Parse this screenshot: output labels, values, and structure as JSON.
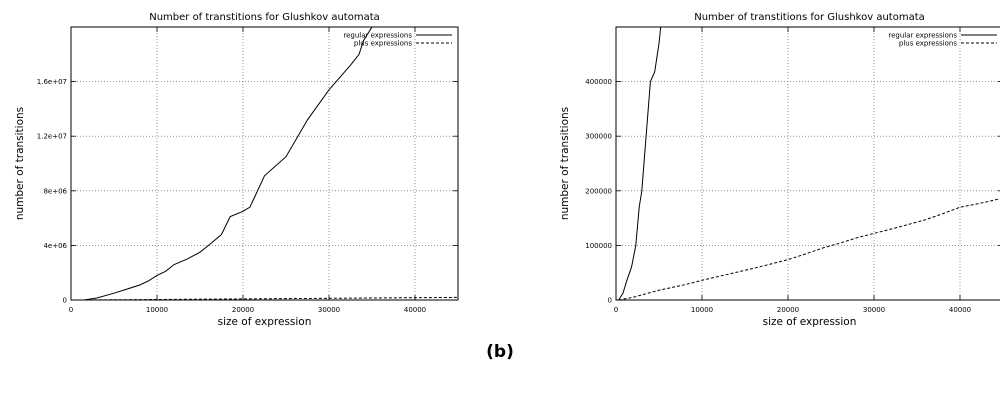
{
  "figure_label": "(b)",
  "chart_data": [
    {
      "type": "line",
      "title": "Number of transtitions for Glushkov automata",
      "xlabel": "size of expression",
      "ylabel": "number of transitions",
      "xlim": [
        0,
        45000
      ],
      "ylim": [
        0,
        20000000
      ],
      "xticks": [
        0,
        10000,
        20000,
        30000,
        40000
      ],
      "xtick_labels": [
        "0",
        "10000",
        "20000",
        "30000",
        "40000"
      ],
      "yticks": [
        0,
        4000000,
        8000000,
        12000000,
        16000000
      ],
      "ytick_labels": [
        "0",
        "4e+06",
        "8e+06",
        "1.2e+07",
        "1.6e+07"
      ],
      "grid": true,
      "legend_position": "top-right",
      "series": [
        {
          "name": "regular expressions",
          "style": "solid",
          "x": [
            1500,
            3000,
            5000,
            6500,
            8000,
            9000,
            10000,
            11000,
            12000,
            13500,
            15000,
            16000,
            17500,
            18500,
            20000,
            20800,
            22500,
            25000,
            27500,
            30000,
            32500,
            33500,
            34000,
            35000
          ],
          "y": [
            0,
            150000,
            500000,
            800000,
            1100000,
            1400000,
            1800000,
            2100000,
            2600000,
            3000000,
            3500000,
            4000000,
            4800000,
            6100000,
            6500000,
            6800000,
            9100000,
            10500000,
            13200000,
            15400000,
            17200000,
            18000000,
            19000000,
            20000000
          ]
        },
        {
          "name": "plus expressions",
          "style": "dashed",
          "x": [
            1500,
            10000,
            20000,
            30000,
            40000,
            45000
          ],
          "y": [
            0,
            40000,
            80000,
            125000,
            170000,
            190000
          ]
        }
      ]
    },
    {
      "type": "line",
      "title": "Number of transtitions for Glushkov automata",
      "xlabel": "size of expression",
      "ylabel": "number of transitions",
      "xlim": [
        0,
        45000
      ],
      "ylim": [
        0,
        500000
      ],
      "xticks": [
        0,
        10000,
        20000,
        30000,
        40000
      ],
      "xtick_labels": [
        "0",
        "10000",
        "20000",
        "30000",
        "40000"
      ],
      "yticks": [
        0,
        100000,
        200000,
        300000,
        400000
      ],
      "ytick_labels": [
        "0",
        "100000",
        "200000",
        "300000",
        "400000"
      ],
      "grid": true,
      "legend_position": "top-right",
      "series": [
        {
          "name": "regular expressions",
          "style": "solid",
          "x": [
            300,
            800,
            1300,
            1800,
            2300,
            2700,
            3000,
            3500,
            4000,
            4500,
            5000,
            5200
          ],
          "y": [
            0,
            12000,
            38000,
            60000,
            100000,
            170000,
            200000,
            300000,
            400000,
            418000,
            470000,
            500000
          ],
          "note_visible_range": true
        },
        {
          "name": "plus expressions",
          "style": "dashed",
          "x": [
            300,
            2000,
            5000,
            8000,
            10000,
            13000,
            16000,
            18000,
            20000,
            22000,
            24000,
            26000,
            28000,
            30000,
            33000,
            36000,
            38000,
            40000,
            42000,
            44000,
            45000
          ],
          "y": [
            0,
            5000,
            18000,
            28000,
            36000,
            47000,
            58000,
            66000,
            74000,
            84000,
            95000,
            104000,
            114000,
            122000,
            134000,
            147000,
            158000,
            170000,
            176000,
            183000,
            187000
          ]
        }
      ]
    }
  ]
}
